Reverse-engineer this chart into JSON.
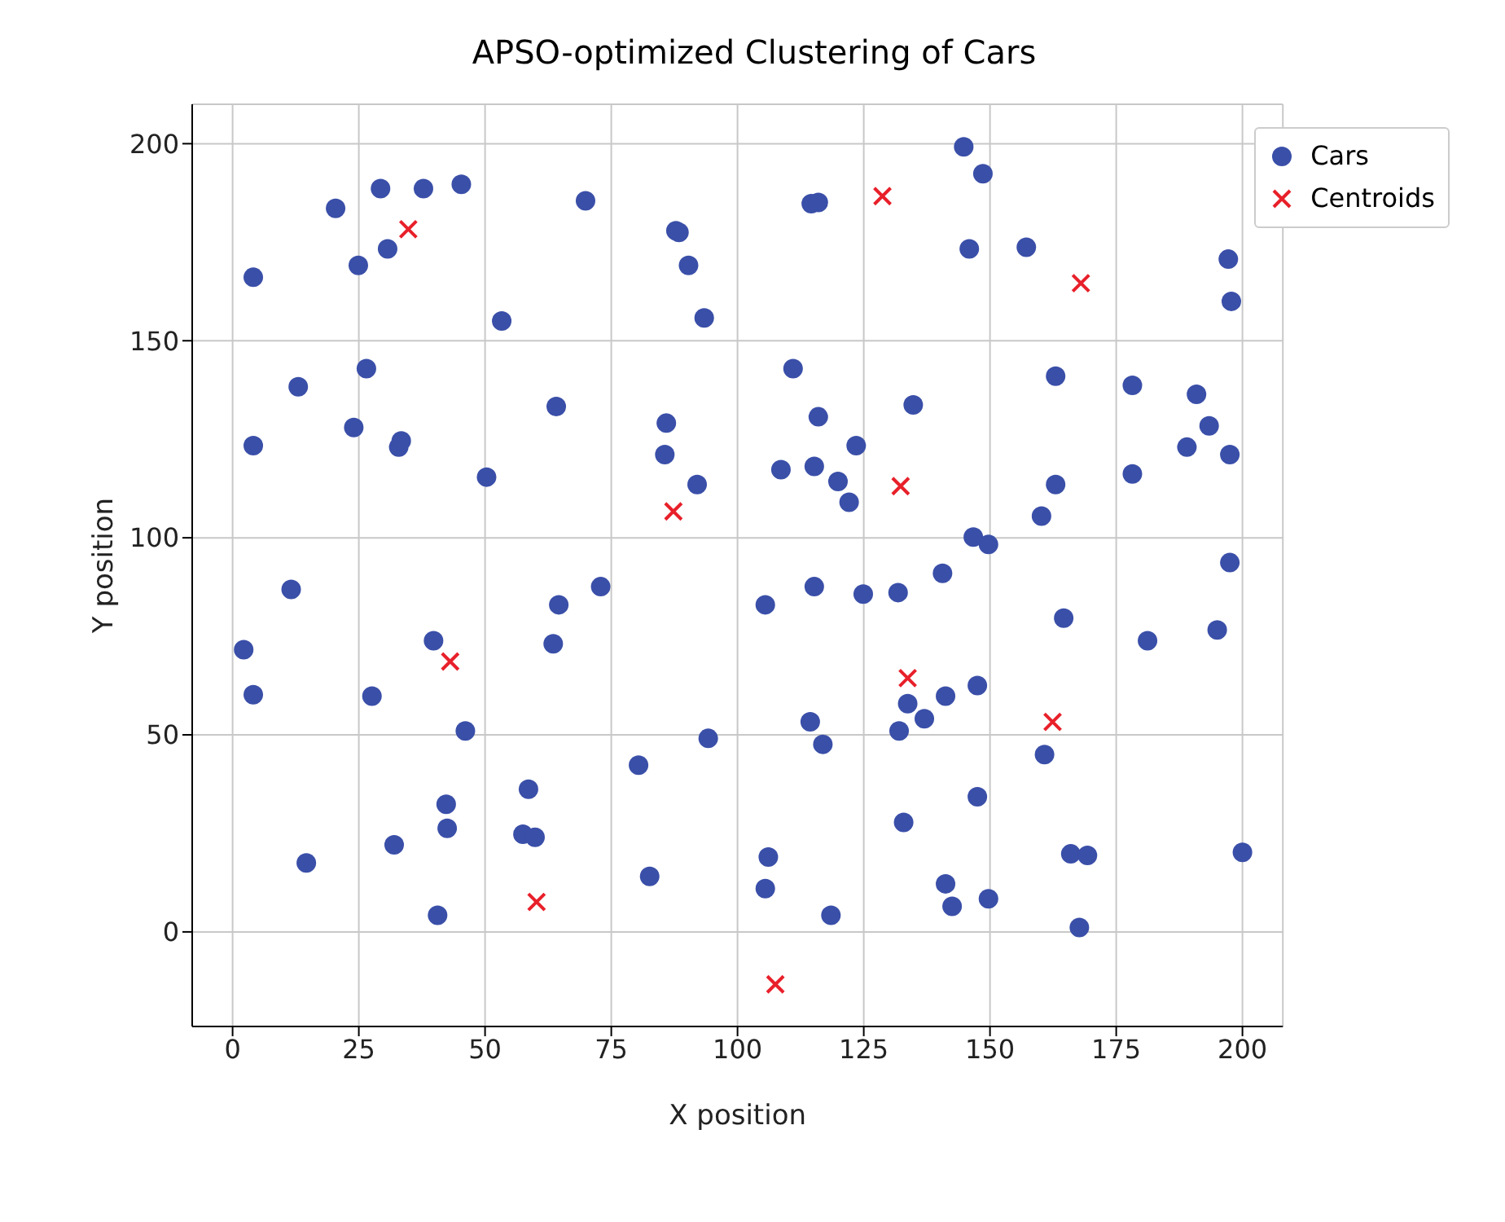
{
  "chart_data": {
    "type": "scatter",
    "title": "APSO-optimized Clustering of Cars",
    "xlabel": "X position",
    "ylabel": "Y position",
    "xlim": [
      -8,
      208
    ],
    "ylim": [
      -24,
      210
    ],
    "xticks": [
      0,
      25,
      50,
      75,
      100,
      125,
      150,
      175,
      200
    ],
    "yticks": [
      0,
      50,
      100,
      150,
      200
    ],
    "grid": true,
    "legend": "top right",
    "series": [
      {
        "name": "Cars",
        "color": "#3a4fa8",
        "marker": "circle",
        "x": [
          2.2,
          4.1,
          4.1,
          4.1,
          11.6,
          13.0,
          14.6,
          20.4,
          24.0,
          24.9,
          26.5,
          27.6,
          29.3,
          30.7,
          32.0,
          32.9,
          33.4,
          37.8,
          39.8,
          40.6,
          42.3,
          42.5,
          45.3,
          46.1,
          50.3,
          53.3,
          58.6,
          57.5,
          59.9,
          64.1,
          64.6,
          63.5,
          69.9,
          72.9,
          80.4,
          82.6,
          85.9,
          85.6,
          87.8,
          88.4,
          90.3,
          92.0,
          93.4,
          94.2,
          105.5,
          105.5,
          106.1,
          108.6,
          111.0,
          114.4,
          114.6,
          116.0,
          115.2,
          116.0,
          115.2,
          116.9,
          118.5,
          119.9,
          122.1,
          123.5,
          124.9,
          131.8,
          132.0,
          132.9,
          133.7,
          134.8,
          137.0,
          140.6,
          141.2,
          141.2,
          142.5,
          144.8,
          145.9,
          146.7,
          147.5,
          147.5,
          148.6,
          149.7,
          149.7,
          157.2,
          160.2,
          160.8,
          163.0,
          163.0,
          164.6,
          166.0,
          167.7,
          169.3,
          178.2,
          178.2,
          181.2,
          189.0,
          190.9,
          193.4,
          195.0,
          197.2,
          197.8,
          197.5,
          197.5,
          200.0
        ],
        "values": [
          71.6,
          60.2,
          166.1,
          123.4,
          86.9,
          138.3,
          17.5,
          183.6,
          128.0,
          169.1,
          142.9,
          59.8,
          188.6,
          173.3,
          22.1,
          123.0,
          124.6,
          188.6,
          73.9,
          4.2,
          32.4,
          26.3,
          189.7,
          51.0,
          115.4,
          155.0,
          36.2,
          24.8,
          24.0,
          133.3,
          83.0,
          73.1,
          185.5,
          87.6,
          42.3,
          14.1,
          129.1,
          121.1,
          177.9,
          177.5,
          169.1,
          113.5,
          155.8,
          49.1,
          83.0,
          11.0,
          19.0,
          117.3,
          142.9,
          53.3,
          184.8,
          185.1,
          118.1,
          130.7,
          87.6,
          47.6,
          4.2,
          114.3,
          109.0,
          123.4,
          85.7,
          86.1,
          51.0,
          27.8,
          57.9,
          133.7,
          54.1,
          91.0,
          59.8,
          12.2,
          6.5,
          199.2,
          173.3,
          100.2,
          62.5,
          34.3,
          192.4,
          98.3,
          8.4,
          173.7,
          105.5,
          45.0,
          141.0,
          113.5,
          79.6,
          19.8,
          1.1,
          19.4,
          138.7,
          116.2,
          73.9,
          123.0,
          136.4,
          128.4,
          76.6,
          170.7,
          160.0,
          121.1,
          93.7,
          20.2
        ]
      },
      {
        "name": "Centroids",
        "color": "#e8202a",
        "marker": "cross",
        "x": [
          34.8,
          87.3,
          43.1,
          60.2,
          107.5,
          128.7,
          132.3,
          133.7,
          168.0,
          162.4
        ],
        "values": [
          178.3,
          106.7,
          68.6,
          7.6,
          -13.3,
          186.7,
          113.1,
          64.4,
          164.6,
          53.3
        ]
      }
    ]
  }
}
